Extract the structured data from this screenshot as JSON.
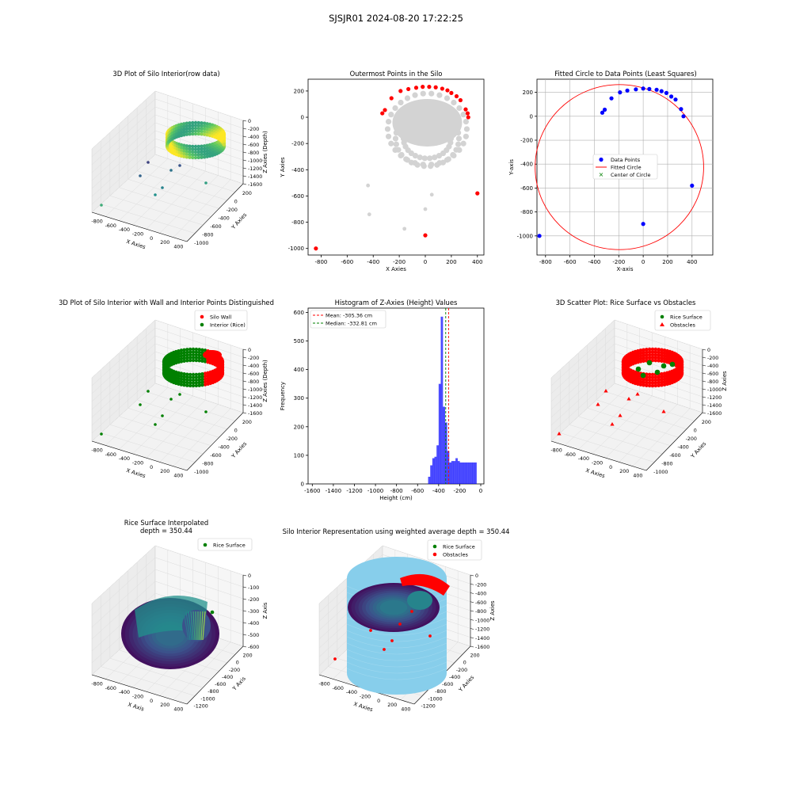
{
  "page": {
    "suptitle": "SJSJR01 2024-08-20 17:22:25"
  },
  "colors": {
    "wall": "#ff0000",
    "rice": "#008000",
    "blue_points": "#0000ff",
    "gray_points": "#d3d3d3",
    "hist": "#0000ff",
    "mean_line": "#ff0000",
    "median_line": "#008000",
    "cylinder": "#87ceeb",
    "surface_low": "#440154",
    "surface_mid": "#21918c",
    "surface_high": "#fde725"
  },
  "panels": {
    "p1": {
      "title": "3D Plot of Silo Interior(row data)",
      "xlabel": "X Axies",
      "ylabel": "Y Axies",
      "zlabel": "Z Axies (Depth)",
      "xticks": [
        "-800",
        "-600",
        "-400",
        "-200",
        "0",
        "200",
        "400"
      ],
      "yticks": [
        "200",
        "0",
        "-200",
        "-400",
        "-600",
        "-800",
        "-1000"
      ],
      "zticks": [
        "0",
        "-200",
        "-400",
        "-600",
        "-800",
        "-1000",
        "-1200",
        "-1400",
        "-1600"
      ]
    },
    "p2": {
      "title": "Outermost Points in the Silo",
      "xlabel": "X Axies",
      "ylabel": "Y Axies",
      "xticks": [
        "-800",
        "-600",
        "-400",
        "-200",
        "0",
        "200",
        "400"
      ],
      "yticks": [
        "200",
        "0",
        "-200",
        "-400",
        "-600",
        "-800",
        "-1000"
      ]
    },
    "p3": {
      "title": "Fitted Circle to Data Points (Least Squares)",
      "xlabel": "X-axis",
      "ylabel": "Y-axis",
      "xticks": [
        "-800",
        "-600",
        "-400",
        "-200",
        "0",
        "200",
        "400"
      ],
      "yticks": [
        "200",
        "0",
        "-200",
        "-400",
        "-600",
        "-800",
        "-1000"
      ],
      "legend": [
        "Data Points",
        "Fitted Circle",
        "Center of Circle"
      ]
    },
    "p4": {
      "title": "3D Plot of Silo Interior with Wall and Interior Points Distinguished",
      "xlabel": "X Axies",
      "ylabel": "Y Axies",
      "zlabel": "Z Axies (Depth)",
      "xticks": [
        "-800",
        "-600",
        "-400",
        "-200",
        "0",
        "200",
        "400"
      ],
      "yticks": [
        "200",
        "0",
        "-200",
        "-400",
        "-600",
        "-800",
        "-1000"
      ],
      "zticks": [
        "0",
        "-200",
        "-400",
        "-600",
        "-800",
        "-1000",
        "-1200",
        "-1400",
        "-1600"
      ],
      "legend": [
        "Silo Wall",
        "Interior (Rice)"
      ]
    },
    "p5": {
      "title": "Histogram of Z-Axies (Height) Values",
      "xlabel": "Height (cm)",
      "ylabel": "Frequency",
      "xticks": [
        "-1600",
        "-1400",
        "-1200",
        "-1000",
        "-800",
        "-600",
        "-400",
        "-200",
        "0"
      ],
      "yticks": [
        "0",
        "100",
        "200",
        "300",
        "400",
        "500",
        "600"
      ],
      "legend": [
        "Mean: -305.36 cm",
        "Median: -332.81 cm"
      ]
    },
    "p6": {
      "title": "3D Scatter Plot: Rice Surface vs Obstacles",
      "xlabel": "X Axies",
      "ylabel": "Y Axies",
      "zlabel": "Z Axies",
      "xticks": [
        "-800",
        "-600",
        "-400",
        "-200",
        "0",
        "200",
        "400"
      ],
      "yticks": [
        "200",
        "0",
        "-200",
        "-400",
        "-600",
        "-800",
        "-1000"
      ],
      "zticks": [
        "0",
        "-200",
        "-400",
        "-600",
        "-800",
        "-1000",
        "-1200",
        "-1400",
        "-1600"
      ],
      "legend": [
        "Rice Surface",
        "Obstacles"
      ]
    },
    "p7": {
      "title": "Rice Surface Interpolated",
      "title2": "depth = 350.44",
      "xlabel": "X Axis",
      "ylabel": "Y Axis",
      "zlabel": "Z Axis",
      "xticks": [
        "-800",
        "-600",
        "-400",
        "-200",
        "0",
        "200",
        "400"
      ],
      "yticks": [
        "200",
        "0",
        "-200",
        "-400",
        "-600",
        "-800",
        "-1000",
        "-1200"
      ],
      "zticks": [
        "0",
        "-100",
        "-200",
        "-300",
        "-400",
        "-500",
        "-600"
      ],
      "legend": [
        "Rice Surface"
      ]
    },
    "p8": {
      "title": "Silo Interior Representation using weighted average depth = 350.44",
      "xlabel": "X Axies",
      "ylabel": "Y Axies",
      "zlabel": "Z Axies",
      "xticks": [
        "-800",
        "-600",
        "-400",
        "-200",
        "0",
        "200",
        "400"
      ],
      "yticks": [
        "200",
        "0",
        "-200",
        "-400",
        "-600",
        "-800",
        "-1000",
        "-1200"
      ],
      "zticks": [
        "0",
        "-200",
        "-400",
        "-600",
        "-800",
        "-1000",
        "-1200",
        "-1400",
        "-1600"
      ],
      "legend": [
        "Rice Surface",
        "Obstacles"
      ]
    }
  },
  "chart_data": [
    {
      "type": "scatter",
      "title": "Outermost Points in the Silo",
      "xlim": [
        -900,
        450
      ],
      "ylim": [
        -1050,
        290
      ],
      "series": [
        {
          "values": [
            [
              -840,
              -1000
            ],
            [
              0,
              -900
            ],
            [
              400,
              -580
            ],
            [
              -330,
              30
            ],
            [
              -310,
              55
            ],
            [
              -260,
              145
            ],
            [
              -190,
              200
            ],
            [
              -130,
              215
            ],
            [
              -70,
              225
            ],
            [
              -20,
              232
            ],
            [
              30,
              232
            ],
            [
              80,
              228
            ],
            [
              130,
              218
            ],
            [
              170,
              205
            ],
            [
              200,
              185
            ],
            [
              240,
              160
            ],
            [
              270,
              130
            ],
            [
              310,
              60
            ],
            [
              325,
              30
            ],
            [
              330,
              0
            ]
          ]
        },
        {
          "values": [
            [
              -440,
              -520
            ],
            [
              -430,
              -740
            ],
            [
              -160,
              -850
            ],
            [
              0,
              -700
            ],
            [
              50,
              -590
            ]
          ]
        }
      ]
    },
    {
      "type": "scatter",
      "title": "Fitted Circle to Data Points (Least Squares)",
      "xlim": [
        -870,
        570
      ],
      "ylim": [
        -1160,
        310
      ],
      "series": [
        {
          "name": "Data Points",
          "values": [
            [
              -850,
              -1000
            ],
            [
              0,
              -900
            ],
            [
              400,
              -580
            ],
            [
              -335,
              30
            ],
            [
              -315,
              55
            ],
            [
              -260,
              150
            ],
            [
              -190,
              200
            ],
            [
              -130,
              215
            ],
            [
              -60,
              225
            ],
            [
              0,
              232
            ],
            [
              50,
              228
            ],
            [
              110,
              222
            ],
            [
              150,
              210
            ],
            [
              190,
              195
            ],
            [
              230,
              165
            ],
            [
              265,
              140
            ],
            [
              310,
              60
            ],
            [
              330,
              0
            ]
          ]
        },
        {
          "name": "Fitted Circle",
          "center": [
            -195,
            -425
          ],
          "radius": 690
        },
        {
          "name": "Center of Circle",
          "values": []
        }
      ]
    },
    {
      "type": "bar",
      "title": "Histogram of Z-Axies (Height) Values",
      "xlim": [
        -1640,
        30
      ],
      "ylim": [
        0,
        615
      ],
      "bin_width": 20,
      "categories": [
        -500,
        -480,
        -460,
        -440,
        -420,
        -400,
        -380,
        -360,
        -340,
        -320,
        -300,
        -280,
        -260,
        -240,
        -220,
        -200,
        -180,
        -160,
        -140,
        -120,
        -100,
        -80,
        -60
      ],
      "values": [
        25,
        65,
        90,
        95,
        135,
        350,
        585,
        270,
        215,
        115,
        75,
        80,
        80,
        90,
        80,
        75,
        75,
        75,
        75,
        75,
        75,
        75,
        75
      ],
      "mean": -305.36,
      "median": -332.81
    }
  ]
}
